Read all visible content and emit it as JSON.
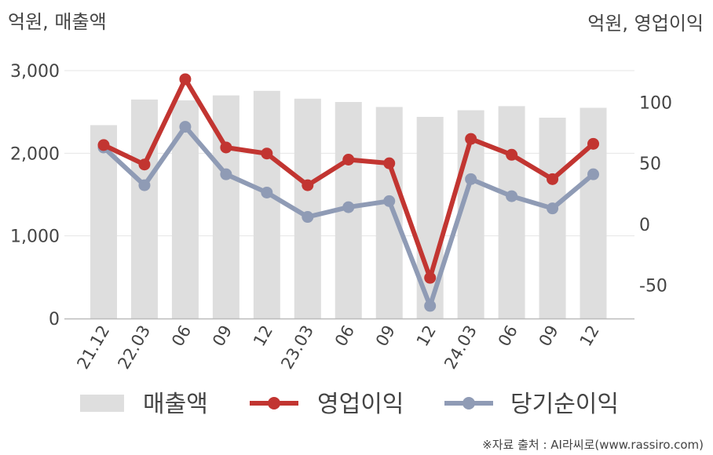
{
  "chart_data": {
    "type": "bar",
    "categories": [
      "21.12",
      "22.03",
      "06",
      "09",
      "12",
      "23.03",
      "06",
      "09",
      "12",
      "24.03",
      "06",
      "09",
      "12"
    ],
    "series": [
      {
        "name": "매출액",
        "type": "bar",
        "axis": "left",
        "color": "#dedede",
        "values": [
          2340,
          2650,
          2640,
          2700,
          2755,
          2660,
          2620,
          2560,
          2440,
          2520,
          2570,
          2430,
          2550
        ]
      },
      {
        "name": "영업이익",
        "type": "line",
        "axis": "right",
        "color": "#c23531",
        "values": [
          65,
          49,
          119,
          63,
          58,
          32,
          53,
          50,
          -44,
          70,
          57,
          37,
          66
        ]
      },
      {
        "name": "당기순이익",
        "type": "line",
        "axis": "right",
        "color": "#8f9bb5",
        "values": [
          63,
          32,
          80,
          41,
          26,
          6,
          14,
          19,
          -67,
          37,
          23,
          13,
          41
        ]
      }
    ],
    "left_axis": {
      "label": "억원, 매출액",
      "ylim": [
        0,
        3000
      ],
      "ticks": [
        0,
        1000,
        2000,
        3000
      ],
      "tick_labels": [
        "0",
        "1,000",
        "2,000",
        "3,000"
      ]
    },
    "right_axis": {
      "label": "억원, 영업이익",
      "ylim": [
        -77,
        126
      ],
      "ticks": [
        -50,
        0,
        50,
        100
      ],
      "tick_labels": [
        "-50",
        "0",
        "50",
        "100"
      ]
    },
    "grid": true,
    "legend_position": "bottom"
  },
  "source": "※자료 출처 : AI라씨로(www.rassiro.com)"
}
